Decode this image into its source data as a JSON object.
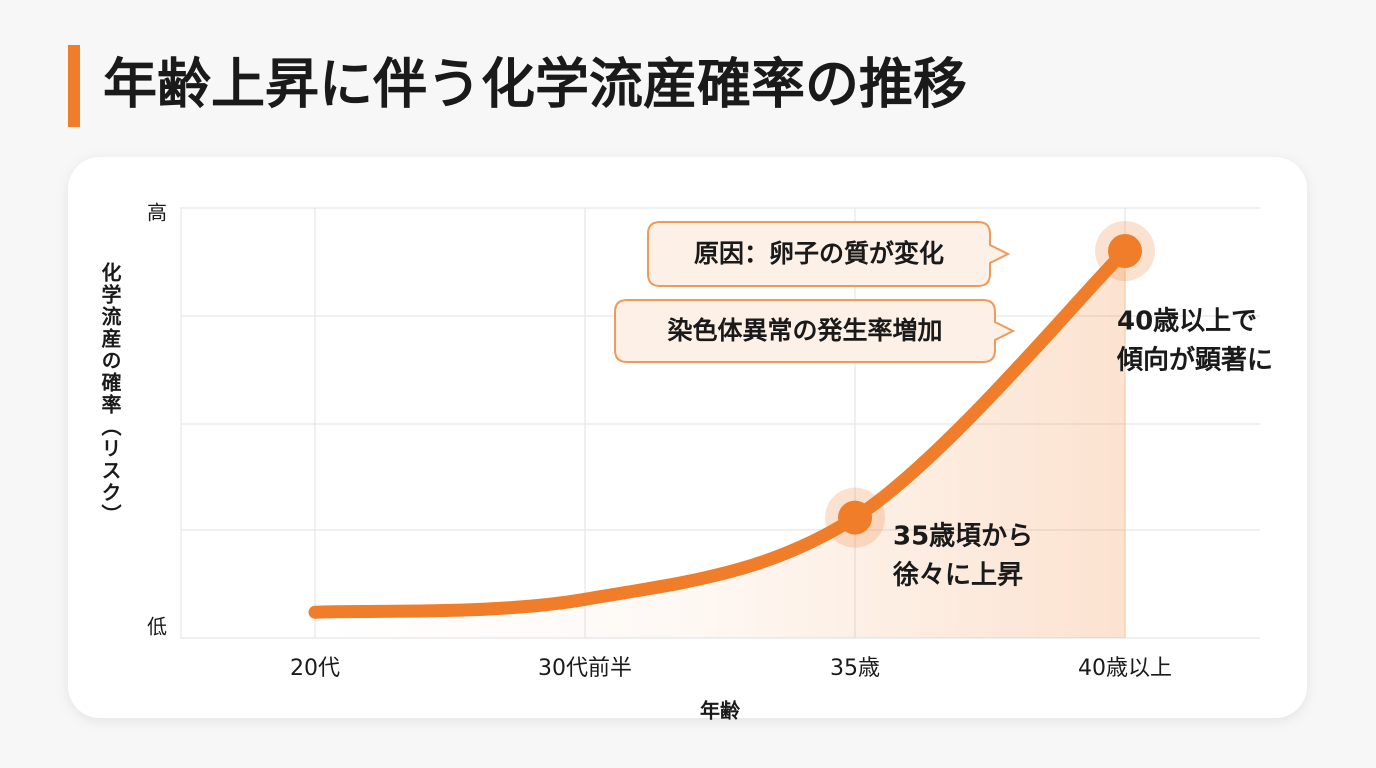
{
  "chart_data": {
    "type": "line",
    "title": "年齢上昇に伴う化学流産確率の推移",
    "x_label": "年齢",
    "y_label": "化学流産の確率（リスク）",
    "categories": [
      "20代",
      "30代前半",
      "35歳",
      "40歳以上"
    ],
    "values": [
      6,
      9,
      28,
      90
    ],
    "color": "#ef7d2a",
    "ylim": [
      0,
      100
    ],
    "yticks": [
      {
        "value": 0,
        "label": "低"
      },
      {
        "value": 100,
        "label": "高"
      }
    ],
    "grid": true,
    "annotations": [
      {
        "text": "原因：卵子の質が変化"
      },
      {
        "text": "染色体異常の発生率増加"
      }
    ],
    "point_labels": [
      {
        "lines": [
          "35歳頃から",
          "徐々に上昇"
        ]
      },
      {
        "lines": [
          "40歳以上で",
          "傾向が顕著に"
        ]
      }
    ]
  }
}
